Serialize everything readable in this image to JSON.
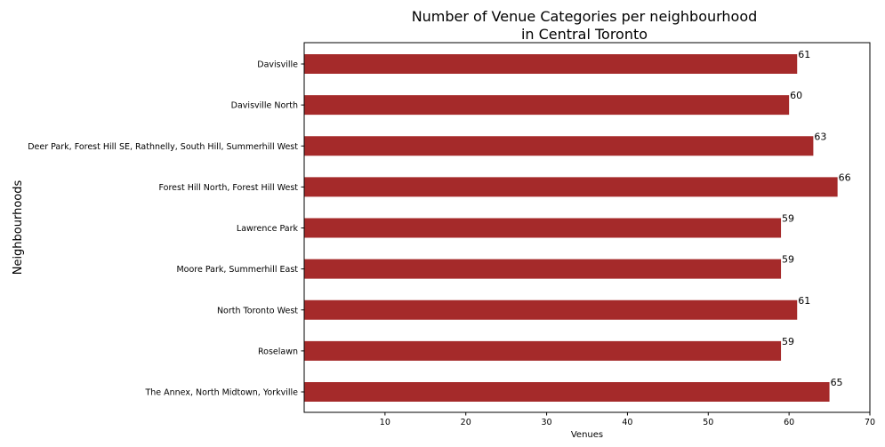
{
  "chart_data": {
    "type": "bar",
    "orientation": "horizontal",
    "title": "Number of Venue Categories per neighbourhood\nin Central Toronto",
    "xlabel": "Venues",
    "ylabel": "Neighbourhoods",
    "xlim": [
      0,
      70
    ],
    "xticks": [
      10,
      20,
      30,
      40,
      50,
      60,
      70
    ],
    "grid": false,
    "bar_color": "#a52a2a",
    "categories": [
      "Davisville",
      "Davisville North",
      "Deer Park, Forest Hill SE, Rathnelly, South Hill, Summerhill West",
      "Forest Hill North, Forest Hill West",
      "Lawrence Park",
      "Moore Park, Summerhill East",
      "North Toronto West",
      "Roselawn",
      "The Annex, North Midtown, Yorkville"
    ],
    "values": [
      61,
      60,
      63,
      66,
      59,
      59,
      61,
      59,
      65
    ]
  }
}
